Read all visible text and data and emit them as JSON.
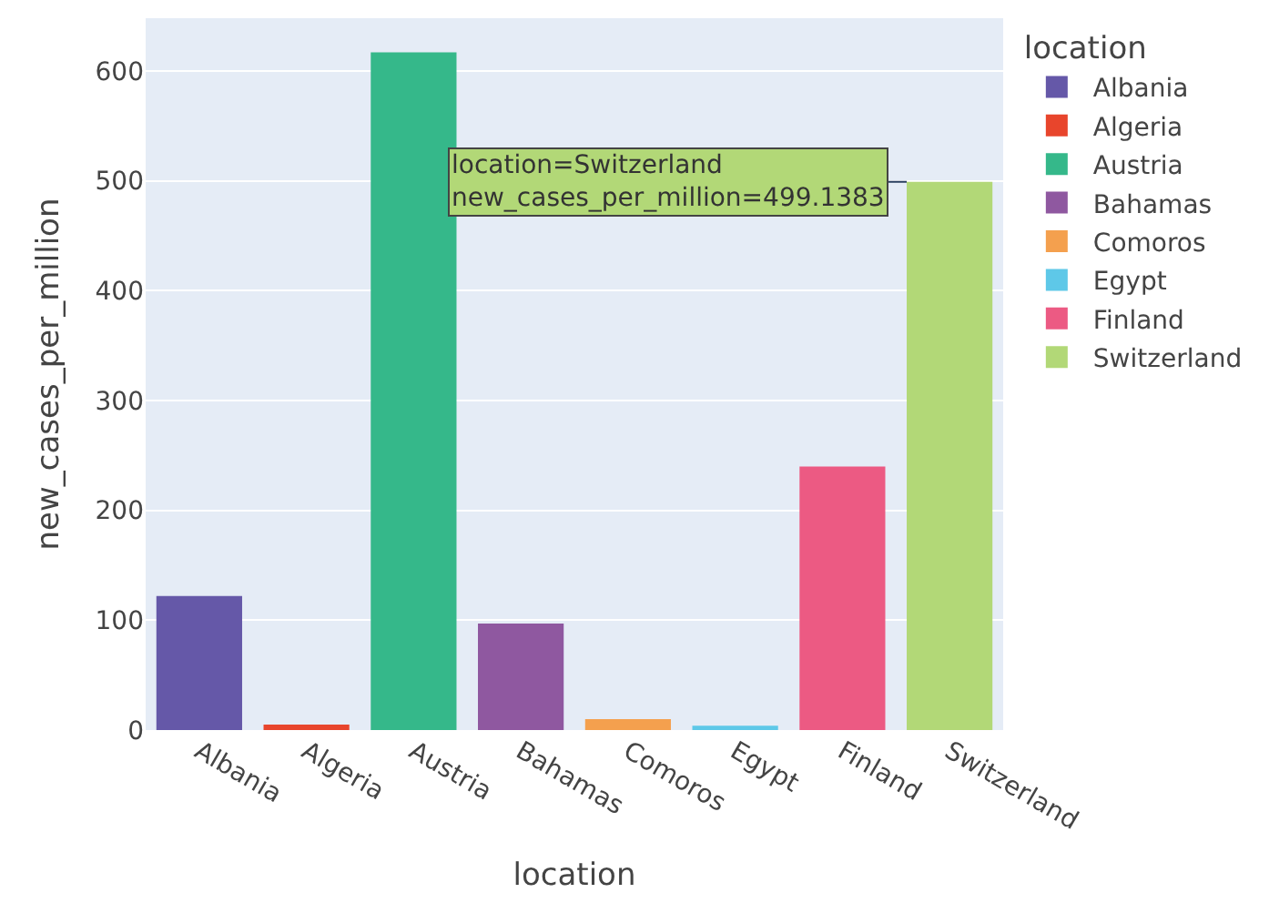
{
  "chart_data": {
    "type": "bar",
    "xlabel": "location",
    "ylabel": "new_cases_per_million",
    "legend_title": "location",
    "categories": [
      "Albania",
      "Algeria",
      "Austria",
      "Bahamas",
      "Comoros",
      "Egypt",
      "Finland",
      "Switzerland"
    ],
    "series": [
      {
        "name": "Albania",
        "color": "#6558a8",
        "values": [
          122,
          null,
          null,
          null,
          null,
          null,
          null,
          null
        ]
      },
      {
        "name": "Algeria",
        "color": "#e8452c",
        "values": [
          null,
          5,
          null,
          null,
          null,
          null,
          null,
          null
        ]
      },
      {
        "name": "Austria",
        "color": "#35b88a",
        "values": [
          null,
          null,
          617,
          null,
          null,
          null,
          null,
          null
        ]
      },
      {
        "name": "Bahamas",
        "color": "#8f58a0",
        "values": [
          null,
          null,
          null,
          97,
          null,
          null,
          null,
          null
        ]
      },
      {
        "name": "Comoros",
        "color": "#f4a04e",
        "values": [
          null,
          null,
          null,
          null,
          10,
          null,
          null,
          null
        ]
      },
      {
        "name": "Egypt",
        "color": "#5ec8e8",
        "values": [
          null,
          null,
          null,
          null,
          null,
          4,
          null,
          null
        ]
      },
      {
        "name": "Finland",
        "color": "#ec5a83",
        "values": [
          null,
          null,
          null,
          null,
          null,
          null,
          240,
          null
        ]
      },
      {
        "name": "Switzerland",
        "color": "#b2d877",
        "values": [
          null,
          null,
          null,
          null,
          null,
          null,
          null,
          499.1383
        ]
      }
    ],
    "ylim": [
      0,
      648
    ],
    "yticks": [
      0,
      100,
      200,
      300,
      400,
      500,
      600
    ],
    "grid": "y",
    "legend": "right",
    "annotations": [
      {
        "text": "location=Switzerland\nnew_cases_per_million=499.1383",
        "x": "Switzerland",
        "y": 499.1383
      }
    ]
  }
}
